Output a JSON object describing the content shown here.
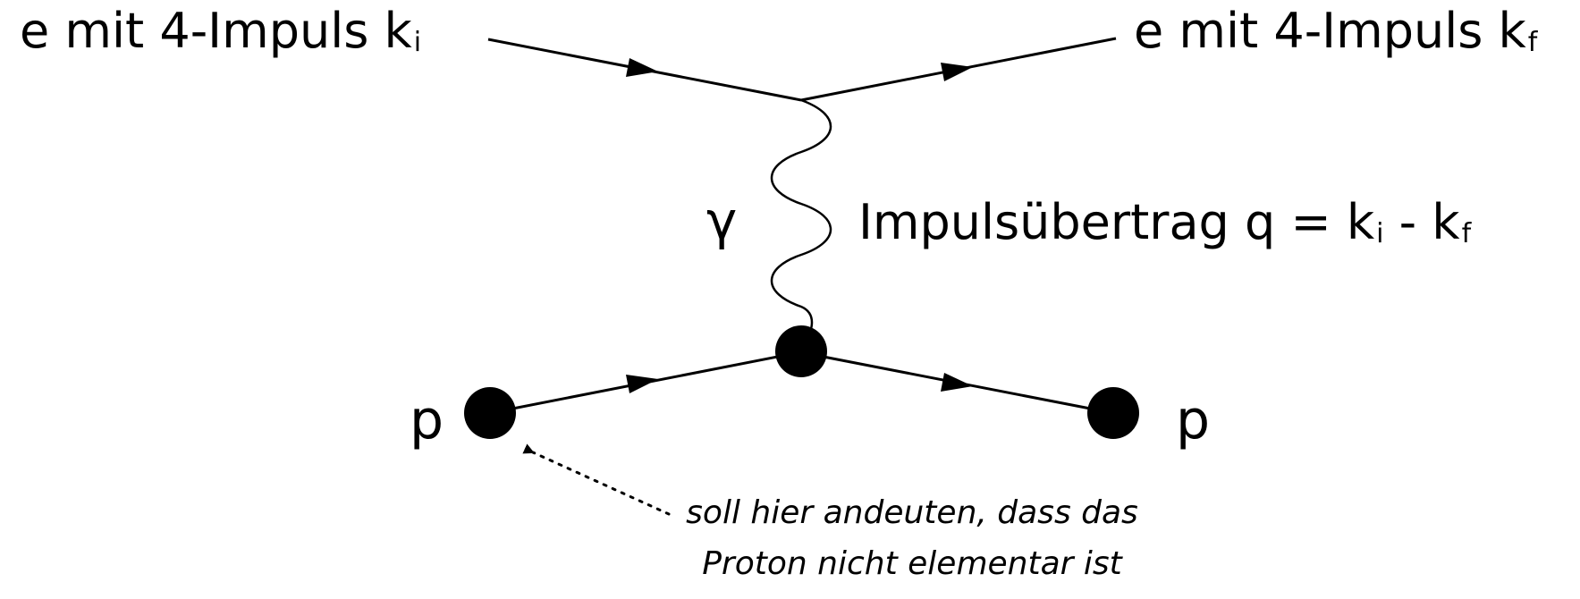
{
  "labels": {
    "electron_in": {
      "text": "e mit 4-Impuls k",
      "sub": "i"
    },
    "electron_out": {
      "text": "e mit 4-Impuls k",
      "sub": "f"
    },
    "photon": "γ",
    "transfer": {
      "prefix": "Impulsübertrag q = k",
      "sub1": "i",
      "mid": " - k",
      "sub2": "f"
    },
    "proton_in": "p",
    "proton_out": "p"
  },
  "annotation": {
    "line1": "soll hier andeuten, dass das",
    "line2": "Proton nicht elementar ist"
  },
  "colors": {
    "ink": "#000000",
    "background": "#ffffff"
  }
}
